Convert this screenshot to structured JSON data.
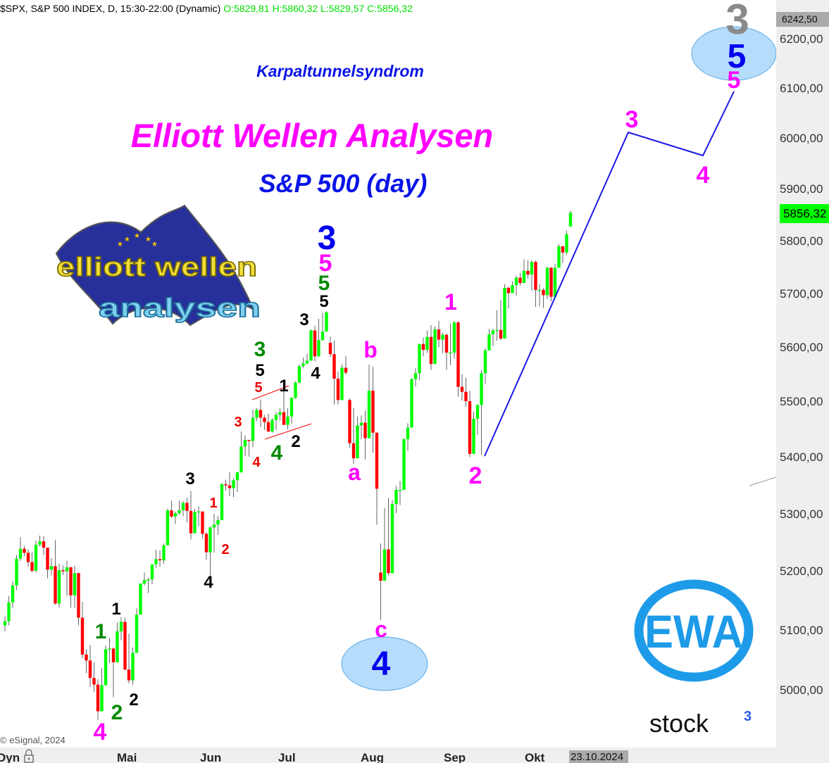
{
  "header": {
    "symbol_info": "$SPX, S&P 500 INDEX, D, 15:30-22:00 (Dynamic)",
    "ohlc_text": "O:5829,81 H:5860,32 L:5829,57 C:5856,32"
  },
  "titles": {
    "subtitle_top": "Karpaltunnelsyndrom",
    "main": "Elliott Wellen Analysen",
    "instrument": "S&P 500 (day)"
  },
  "logos": {
    "elliott_logo": "elliott wellen analysen",
    "ewa_logo": "EWA",
    "stock3_logo": "stock",
    "stock3_sup": "3"
  },
  "right_axis": {
    "high_marker": "6242,50",
    "last_price": "5856,32",
    "ticks": [
      "6200,00",
      "6100,00",
      "6000,00",
      "5900,00",
      "5800,00",
      "5700,00",
      "5600,00",
      "5500,00",
      "5400,00",
      "5300,00",
      "5200,00",
      "5100,00",
      "5000,00"
    ]
  },
  "bottom_axis": {
    "mode": "Dyn",
    "months": [
      "Mai",
      "Jun",
      "Jul",
      "Aug",
      "Sep",
      "Okt"
    ],
    "cursor_date": "23.10.2024"
  },
  "copyright": "© eSignal, 2024",
  "wave_labels": [
    "3",
    "5",
    "5",
    "3",
    "4",
    "1",
    "2",
    "b",
    "a",
    "c",
    "4",
    "3",
    "5",
    "5",
    "5",
    "3",
    "4",
    "3",
    "5",
    "5",
    "1",
    "3",
    "4",
    "4",
    "2",
    "3",
    "1",
    "2",
    "4",
    "1",
    "1",
    "2",
    "2",
    "4"
  ],
  "colors": {
    "up": "#00ff00",
    "down": "#ff0000",
    "wick": "#666666",
    "projection": "#1a1ae6",
    "magenta": "#ff00ff",
    "blue": "#0000ee",
    "green": "#008a00",
    "red": "#ee0000",
    "ewa": "#1e9be8",
    "ellipse": "#b5dcfa"
  },
  "chart_data": {
    "type": "candlestick",
    "scale": "log",
    "ylim": [
      4940,
      6260
    ],
    "ohlc_order": [
      "open",
      "high",
      "low",
      "close"
    ],
    "ohlc": [
      [
        5110,
        5125,
        5100,
        5117
      ],
      [
        5117,
        5160,
        5110,
        5149
      ],
      [
        5149,
        5185,
        5140,
        5178
      ],
      [
        5178,
        5230,
        5170,
        5224
      ],
      [
        5224,
        5261,
        5220,
        5241
      ],
      [
        5241,
        5246,
        5228,
        5234
      ],
      [
        5234,
        5240,
        5210,
        5218
      ],
      [
        5218,
        5235,
        5200,
        5203
      ],
      [
        5203,
        5255,
        5200,
        5248
      ],
      [
        5248,
        5264,
        5245,
        5254
      ],
      [
        5254,
        5263,
        5230,
        5243
      ],
      [
        5243,
        5243,
        5190,
        5205
      ],
      [
        5205,
        5225,
        5195,
        5211
      ],
      [
        5211,
        5256,
        5145,
        5147
      ],
      [
        5147,
        5215,
        5140,
        5204
      ],
      [
        5204,
        5212,
        5196,
        5202
      ],
      [
        5202,
        5220,
        5160,
        5209
      ],
      [
        5209,
        5210,
        5140,
        5161
      ],
      [
        5161,
        5212,
        5140,
        5199
      ],
      [
        5199,
        5200,
        5110,
        5123
      ],
      [
        5123,
        5150,
        5055,
        5061
      ],
      [
        5061,
        5070,
        5030,
        5051
      ],
      [
        5051,
        5077,
        5007,
        5022
      ],
      [
        5022,
        5048,
        4999,
        5011
      ],
      [
        5011,
        5020,
        4953,
        4967
      ],
      [
        4967,
        5038,
        4970,
        5010
      ],
      [
        5010,
        5076,
        5010,
        5070
      ],
      [
        5070,
        5089,
        5047,
        5071
      ],
      [
        5071,
        5073,
        4990,
        5048
      ],
      [
        5048,
        5115,
        5048,
        5100
      ],
      [
        5100,
        5124,
        5085,
        5116
      ],
      [
        5116,
        5123,
        5035,
        5036
      ],
      [
        5036,
        5096,
        5013,
        5018
      ],
      [
        5018,
        5073,
        5011,
        5064
      ],
      [
        5064,
        5139,
        5064,
        5128
      ],
      [
        5128,
        5181,
        5128,
        5181
      ],
      [
        5181,
        5200,
        5178,
        5187
      ],
      [
        5187,
        5191,
        5165,
        5188
      ],
      [
        5188,
        5214,
        5180,
        5214
      ],
      [
        5214,
        5239,
        5208,
        5223
      ],
      [
        5223,
        5238,
        5210,
        5221
      ],
      [
        5221,
        5250,
        5215,
        5247
      ],
      [
        5247,
        5311,
        5247,
        5308
      ],
      [
        5308,
        5325,
        5295,
        5297
      ],
      [
        5297,
        5306,
        5284,
        5303
      ],
      [
        5303,
        5325,
        5300,
        5308
      ],
      [
        5308,
        5324,
        5298,
        5321
      ],
      [
        5321,
        5330,
        5287,
        5307
      ],
      [
        5307,
        5342,
        5257,
        5268
      ],
      [
        5268,
        5311,
        5268,
        5305
      ],
      [
        5305,
        5315,
        5280,
        5306
      ],
      [
        5306,
        5306,
        5259,
        5267
      ],
      [
        5267,
        5270,
        5222,
        5235
      ],
      [
        5235,
        5280,
        5191,
        5278
      ],
      [
        5278,
        5302,
        5234,
        5283
      ],
      [
        5283,
        5298,
        5265,
        5291
      ],
      [
        5291,
        5356,
        5291,
        5354
      ],
      [
        5354,
        5362,
        5343,
        5352
      ],
      [
        5352,
        5376,
        5333,
        5347
      ],
      [
        5347,
        5365,
        5331,
        5361
      ],
      [
        5361,
        5376,
        5340,
        5375
      ],
      [
        5375,
        5448,
        5375,
        5421
      ],
      [
        5421,
        5441,
        5404,
        5433
      ],
      [
        5433,
        5433,
        5403,
        5431
      ],
      [
        5431,
        5488,
        5420,
        5473
      ],
      [
        5473,
        5490,
        5467,
        5487
      ],
      [
        5487,
        5506,
        5456,
        5473
      ],
      [
        5473,
        5478,
        5451,
        5465
      ],
      [
        5465,
        5480,
        5447,
        5448
      ],
      [
        5448,
        5472,
        5446,
        5469
      ],
      [
        5469,
        5483,
        5451,
        5478
      ],
      [
        5478,
        5490,
        5468,
        5483
      ],
      [
        5483,
        5524,
        5460,
        5460
      ],
      [
        5460,
        5490,
        5452,
        5475
      ],
      [
        5475,
        5510,
        5462,
        5509
      ],
      [
        5509,
        5539,
        5507,
        5537
      ],
      [
        5537,
        5570,
        5535,
        5567
      ],
      [
        5567,
        5583,
        5563,
        5572
      ],
      [
        5572,
        5590,
        5570,
        5577
      ],
      [
        5577,
        5635,
        5577,
        5633
      ],
      [
        5633,
        5642,
        5576,
        5585
      ],
      [
        5585,
        5655,
        5585,
        5615
      ],
      [
        5615,
        5666,
        5614,
        5631
      ],
      [
        5631,
        5669,
        5631,
        5667
      ],
      [
        5610,
        5622,
        5584,
        5589
      ],
      [
        5589,
        5614,
        5497,
        5544
      ],
      [
        5544,
        5557,
        5497,
        5505
      ],
      [
        5505,
        5570,
        5505,
        5564
      ],
      [
        5564,
        5586,
        5551,
        5555
      ],
      [
        5505,
        5508,
        5419,
        5427
      ],
      [
        5427,
        5491,
        5390,
        5400
      ],
      [
        5400,
        5475,
        5400,
        5459
      ],
      [
        5459,
        5477,
        5434,
        5464
      ],
      [
        5464,
        5486,
        5398,
        5436
      ],
      [
        5436,
        5570,
        5436,
        5522
      ],
      [
        5522,
        5566,
        5410,
        5446
      ],
      [
        5446,
        5446,
        5283,
        5346
      ],
      [
        5200,
        5250,
        5119,
        5186
      ],
      [
        5186,
        5312,
        5186,
        5240
      ],
      [
        5240,
        5330,
        5195,
        5199
      ],
      [
        5199,
        5326,
        5199,
        5319
      ],
      [
        5319,
        5351,
        5303,
        5344
      ],
      [
        5344,
        5360,
        5317,
        5344
      ],
      [
        5344,
        5436,
        5344,
        5434
      ],
      [
        5434,
        5463,
        5413,
        5455
      ],
      [
        5455,
        5545,
        5455,
        5543
      ],
      [
        5543,
        5563,
        5530,
        5554
      ],
      [
        5554,
        5608,
        5541,
        5608
      ],
      [
        5608,
        5620,
        5585,
        5597
      ],
      [
        5597,
        5633,
        5591,
        5621
      ],
      [
        5621,
        5643,
        5560,
        5571
      ],
      [
        5571,
        5641,
        5571,
        5635
      ],
      [
        5635,
        5651,
        5602,
        5616
      ],
      [
        5616,
        5629,
        5591,
        5625
      ],
      [
        5625,
        5627,
        5560,
        5592
      ],
      [
        5592,
        5646,
        5569,
        5592
      ],
      [
        5592,
        5651,
        5581,
        5648
      ],
      [
        5648,
        5651,
        5511,
        5529
      ],
      [
        5529,
        5552,
        5504,
        5520
      ],
      [
        5520,
        5546,
        5493,
        5503
      ],
      [
        5503,
        5522,
        5402,
        5408
      ],
      [
        5408,
        5484,
        5408,
        5471
      ],
      [
        5471,
        5497,
        5442,
        5496
      ],
      [
        5496,
        5560,
        5406,
        5554
      ],
      [
        5554,
        5600,
        5535,
        5596
      ],
      [
        5596,
        5636,
        5596,
        5626
      ],
      [
        5626,
        5636,
        5604,
        5633
      ],
      [
        5633,
        5671,
        5614,
        5634
      ],
      [
        5634,
        5690,
        5615,
        5618
      ],
      [
        5618,
        5720,
        5618,
        5713
      ],
      [
        5713,
        5715,
        5674,
        5703
      ],
      [
        5703,
        5725,
        5703,
        5718
      ],
      [
        5718,
        5736,
        5698,
        5732
      ],
      [
        5732,
        5741,
        5717,
        5722
      ],
      [
        5722,
        5767,
        5722,
        5745
      ],
      [
        5745,
        5765,
        5730,
        5738
      ],
      [
        5738,
        5765,
        5707,
        5762
      ],
      [
        5762,
        5765,
        5677,
        5709
      ],
      [
        5709,
        5720,
        5678,
        5709
      ],
      [
        5709,
        5713,
        5675,
        5699
      ],
      [
        5699,
        5753,
        5692,
        5751
      ],
      [
        5751,
        5752,
        5687,
        5696
      ],
      [
        5696,
        5758,
        5696,
        5751
      ],
      [
        5751,
        5796,
        5751,
        5792
      ],
      [
        5792,
        5792,
        5760,
        5780
      ],
      [
        5780,
        5822,
        5776,
        5815
      ],
      [
        5829.81,
        5860.32,
        5829.57,
        5856.32
      ]
    ],
    "projection_path_prices": [
      5408,
      6015,
      5970,
      6095
    ]
  }
}
